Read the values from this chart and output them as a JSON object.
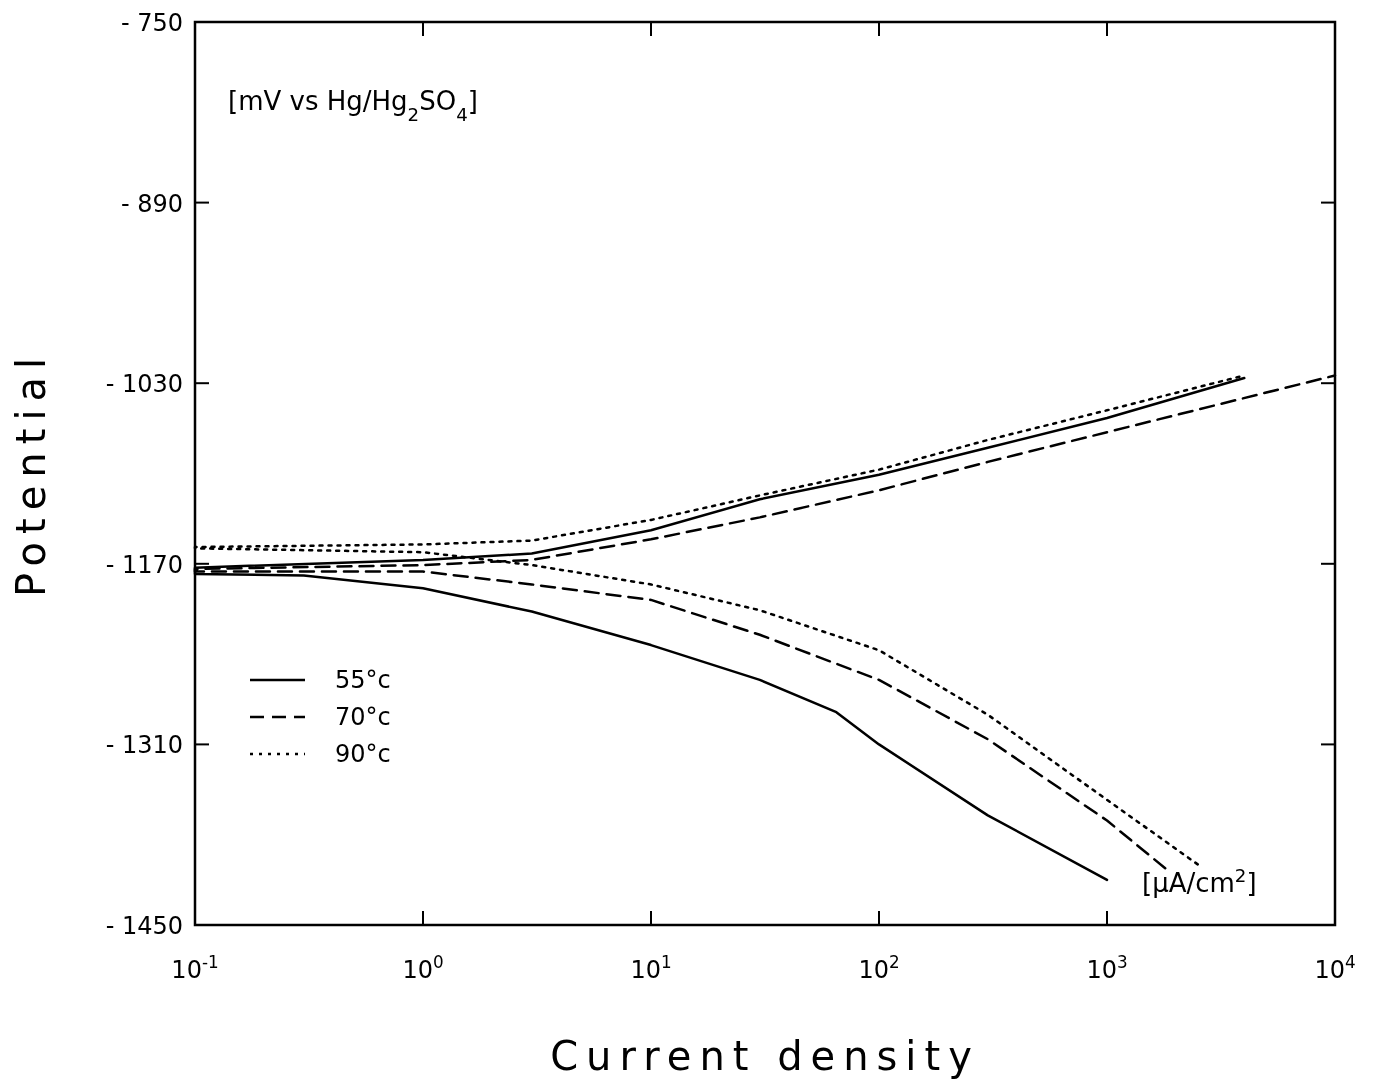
{
  "chart_data": {
    "type": "line",
    "xlabel": "Current density",
    "ylabel": "Potential",
    "log": "x",
    "xlim": [
      0.1,
      10000
    ],
    "ylim": [
      -1450,
      -750
    ],
    "xticks": [
      {
        "value": 0.1,
        "label": "10$^{-1}$"
      },
      {
        "value": 1,
        "label": "10$^{0}$"
      },
      {
        "value": 10,
        "label": "10$^{1}$"
      },
      {
        "value": 100,
        "label": "10$^{2}$"
      },
      {
        "value": 1000,
        "label": "10$^{3}$"
      },
      {
        "value": 10000,
        "label": "10$^{4}$"
      }
    ],
    "yticks": [
      {
        "value": -750,
        "label": "- 750"
      },
      {
        "value": -890,
        "label": "- 890"
      },
      {
        "value": -1030,
        "label": "- 1030"
      },
      {
        "value": -1170,
        "label": "- 1170"
      },
      {
        "value": -1310,
        "label": "- 1310"
      },
      {
        "value": -1450,
        "label": "- 1450"
      }
    ],
    "grid": false,
    "legend": "left",
    "annotations": [
      "[mV vs Hg/Hg$_{2}$SO$_{4}$]",
      "[μA/cm$^{2}$]"
    ],
    "series": [
      {
        "name": "55°c",
        "color": "#000000",
        "line_style": "solid",
        "x": [
          1000,
          300,
          100,
          65,
          30,
          10,
          3,
          1,
          0.3,
          0.1,
          0.1,
          1,
          3,
          10,
          30,
          100,
          300,
          1000,
          4000
        ],
        "values": [
          -1415,
          -1365,
          -1310,
          -1285,
          -1260,
          -1233,
          -1207,
          -1189,
          -1179,
          -1178,
          -1173,
          -1167,
          -1162,
          -1144,
          -1120,
          -1101,
          -1080,
          -1057,
          -1026
        ]
      },
      {
        "name": "70°c",
        "color": "#000000",
        "line_style": "dashed",
        "x": [
          1800,
          1000,
          300,
          100,
          30,
          10,
          3,
          1,
          0.1,
          0.1,
          1,
          3,
          10,
          30,
          100,
          300,
          1000,
          10000
        ],
        "values": [
          -1406,
          -1369,
          -1306,
          -1260,
          -1225,
          -1198,
          -1186,
          -1176,
          -1176,
          -1174,
          -1171,
          -1167,
          -1151,
          -1134,
          -1113,
          -1091,
          -1068,
          -1024
        ]
      },
      {
        "name": "90°c",
        "color": "#000000",
        "line_style": "dotted",
        "x": [
          2500,
          1000,
          300,
          100,
          30,
          10,
          3,
          1,
          0.1,
          0.1,
          1,
          3,
          10,
          30,
          100,
          300,
          1000,
          4000
        ],
        "values": [
          -1403,
          -1353,
          -1287,
          -1237,
          -1206,
          -1186,
          -1171,
          -1161,
          -1158,
          -1157,
          -1155,
          -1152,
          -1136,
          -1117,
          -1097,
          -1074,
          -1051,
          -1024
        ]
      }
    ]
  }
}
